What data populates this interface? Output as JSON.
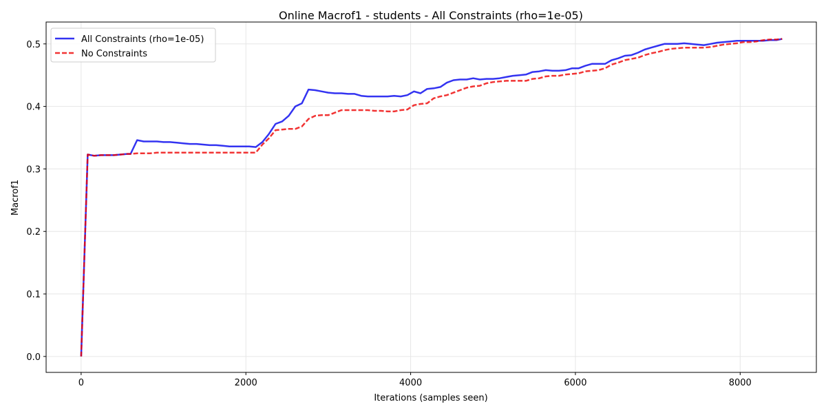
{
  "chart_data": {
    "type": "line",
    "title": "Online Macrof1 - students - All Constraints (rho=1e-05)",
    "xlabel": "Iterations (samples seen)",
    "ylabel": "Macrof1",
    "xlim": [
      -425,
      8925
    ],
    "ylim": [
      -0.0255,
      0.535
    ],
    "xticks": [
      0,
      2000,
      4000,
      6000,
      8000
    ],
    "xtick_labels": [
      "0",
      "2000",
      "4000",
      "6000",
      "8000"
    ],
    "yticks": [
      0.0,
      0.1,
      0.2,
      0.3,
      0.4,
      0.5
    ],
    "ytick_labels": [
      "0.0",
      "0.1",
      "0.2",
      "0.3",
      "0.4",
      "0.5"
    ],
    "grid": true,
    "legend_position": "top-left",
    "series": [
      {
        "name": "All Constraints (rho=1e-05)",
        "color": "#0000ee",
        "style": "solid",
        "x": [
          0,
          80,
          160,
          240,
          320,
          400,
          480,
          560,
          600,
          680,
          760,
          840,
          920,
          1000,
          1080,
          1160,
          1240,
          1320,
          1400,
          1480,
          1560,
          1640,
          1720,
          1800,
          1880,
          1960,
          2040,
          2120,
          2200,
          2280,
          2360,
          2440,
          2520,
          2600,
          2680,
          2760,
          2840,
          2920,
          3000,
          3080,
          3160,
          3240,
          3320,
          3400,
          3480,
          3560,
          3640,
          3720,
          3800,
          3880,
          3960,
          4040,
          4120,
          4200,
          4280,
          4360,
          4440,
          4520,
          4600,
          4680,
          4760,
          4840,
          4920,
          5000,
          5080,
          5160,
          5240,
          5320,
          5400,
          5480,
          5560,
          5640,
          5720,
          5800,
          5880,
          5960,
          6040,
          6120,
          6200,
          6280,
          6360,
          6440,
          6520,
          6600,
          6680,
          6760,
          6840,
          6920,
          7000,
          7080,
          7160,
          7240,
          7320,
          7400,
          7480,
          7560,
          7640,
          7720,
          7800,
          7880,
          7960,
          8040,
          8120,
          8200,
          8280,
          8360,
          8440,
          8510
        ],
        "y": [
          0.0,
          0.323,
          0.321,
          0.322,
          0.322,
          0.322,
          0.323,
          0.324,
          0.324,
          0.346,
          0.344,
          0.344,
          0.344,
          0.343,
          0.343,
          0.342,
          0.341,
          0.34,
          0.34,
          0.339,
          0.338,
          0.338,
          0.337,
          0.336,
          0.336,
          0.336,
          0.336,
          0.335,
          0.343,
          0.356,
          0.372,
          0.376,
          0.385,
          0.4,
          0.405,
          0.427,
          0.426,
          0.424,
          0.422,
          0.421,
          0.421,
          0.42,
          0.42,
          0.417,
          0.416,
          0.416,
          0.416,
          0.416,
          0.417,
          0.416,
          0.418,
          0.424,
          0.421,
          0.428,
          0.429,
          0.431,
          0.438,
          0.442,
          0.443,
          0.443,
          0.445,
          0.443,
          0.444,
          0.444,
          0.445,
          0.447,
          0.449,
          0.45,
          0.451,
          0.455,
          0.456,
          0.458,
          0.457,
          0.457,
          0.458,
          0.461,
          0.461,
          0.465,
          0.468,
          0.468,
          0.468,
          0.474,
          0.477,
          0.481,
          0.482,
          0.486,
          0.491,
          0.494,
          0.497,
          0.5,
          0.5,
          0.5,
          0.501,
          0.5,
          0.499,
          0.498,
          0.5,
          0.502,
          0.503,
          0.504,
          0.505,
          0.505,
          0.505,
          0.505,
          0.505,
          0.506,
          0.506,
          0.508
        ]
      },
      {
        "name": "No Constraints",
        "color": "#ee0000",
        "style": "dashed",
        "x": [
          0,
          80,
          160,
          240,
          320,
          400,
          480,
          560,
          600,
          680,
          760,
          840,
          920,
          1000,
          1080,
          1160,
          1240,
          1320,
          1400,
          1480,
          1560,
          1640,
          1720,
          1800,
          1880,
          1960,
          2040,
          2120,
          2200,
          2280,
          2360,
          2440,
          2520,
          2600,
          2680,
          2760,
          2840,
          2920,
          3000,
          3080,
          3160,
          3240,
          3320,
          3400,
          3480,
          3560,
          3640,
          3720,
          3800,
          3880,
          3960,
          4040,
          4120,
          4200,
          4280,
          4360,
          4440,
          4520,
          4600,
          4680,
          4760,
          4840,
          4920,
          5000,
          5080,
          5160,
          5240,
          5320,
          5400,
          5480,
          5560,
          5640,
          5720,
          5800,
          5880,
          5960,
          6040,
          6120,
          6200,
          6280,
          6360,
          6440,
          6520,
          6600,
          6680,
          6760,
          6840,
          6920,
          7000,
          7080,
          7160,
          7240,
          7320,
          7400,
          7480,
          7560,
          7640,
          7720,
          7800,
          7880,
          7960,
          8040,
          8120,
          8200,
          8280,
          8360,
          8440,
          8510
        ],
        "y": [
          0.0,
          0.323,
          0.321,
          0.322,
          0.322,
          0.322,
          0.323,
          0.324,
          0.324,
          0.325,
          0.325,
          0.325,
          0.326,
          0.326,
          0.326,
          0.326,
          0.326,
          0.326,
          0.326,
          0.326,
          0.326,
          0.326,
          0.326,
          0.326,
          0.326,
          0.326,
          0.326,
          0.326,
          0.339,
          0.349,
          0.362,
          0.363,
          0.364,
          0.364,
          0.368,
          0.38,
          0.385,
          0.386,
          0.386,
          0.39,
          0.394,
          0.394,
          0.394,
          0.394,
          0.394,
          0.393,
          0.393,
          0.392,
          0.392,
          0.394,
          0.395,
          0.402,
          0.404,
          0.405,
          0.413,
          0.416,
          0.418,
          0.422,
          0.426,
          0.43,
          0.432,
          0.433,
          0.437,
          0.439,
          0.44,
          0.441,
          0.441,
          0.441,
          0.441,
          0.444,
          0.445,
          0.448,
          0.449,
          0.449,
          0.451,
          0.452,
          0.453,
          0.456,
          0.457,
          0.458,
          0.461,
          0.467,
          0.47,
          0.474,
          0.476,
          0.478,
          0.482,
          0.485,
          0.487,
          0.49,
          0.492,
          0.493,
          0.494,
          0.494,
          0.494,
          0.494,
          0.495,
          0.497,
          0.499,
          0.5,
          0.501,
          0.503,
          0.503,
          0.504,
          0.506,
          0.507,
          0.507,
          0.508
        ]
      }
    ]
  }
}
